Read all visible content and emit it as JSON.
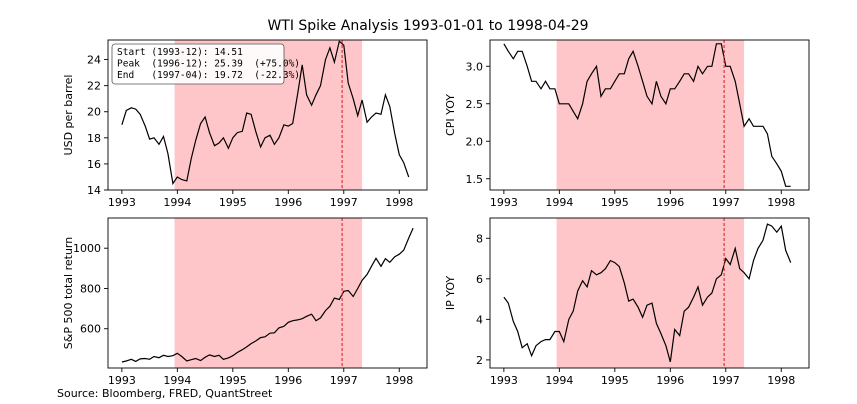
{
  "title": "WTI Spike Analysis 1993-01-01 to 1998-04-29",
  "source": "Source: Bloomberg, FRED, QuantStreet",
  "colors": {
    "line": "#000000",
    "shade": "#ffb3b8",
    "peak_line": "#d62728",
    "axis": "#000000"
  },
  "chart_data": [
    {
      "type": "line",
      "panel": "top-left",
      "ylabel": "USD per barrel",
      "xlim": [
        1992.75,
        1998.5
      ],
      "ylim": [
        14,
        25.5
      ],
      "xticks": [
        1993,
        1994,
        1995,
        1996,
        1997,
        1998
      ],
      "xtick_labels": [
        "1993",
        "1994",
        "1995",
        "1996",
        "1997",
        "1998"
      ],
      "yticks": [
        14,
        16,
        18,
        20,
        22,
        24
      ],
      "ytick_labels": [
        "14",
        "16",
        "18",
        "20",
        "22",
        "24"
      ],
      "shade": [
        1993.95,
        1997.33
      ],
      "peak": 1996.97,
      "annotation": {
        "lines": [
          "Start (1993-12): 14.51",
          "Peak  (1996-12): 25.39  (+75.0%)",
          "End   (1997-04): 19.72  (-22.3%)"
        ]
      },
      "series": [
        {
          "x": [
            1993.0,
            1993.08,
            1993.17,
            1993.25,
            1993.33,
            1993.42,
            1993.5,
            1993.58,
            1993.67,
            1993.75,
            1993.83,
            1993.92,
            1994.0,
            1994.08,
            1994.17,
            1994.25,
            1994.33,
            1994.42,
            1994.5,
            1994.58,
            1994.67,
            1994.75,
            1994.83,
            1994.92,
            1995.0,
            1995.08,
            1995.17,
            1995.25,
            1995.33,
            1995.42,
            1995.5,
            1995.58,
            1995.67,
            1995.75,
            1995.83,
            1995.92,
            1996.0,
            1996.08,
            1996.17,
            1996.25,
            1996.33,
            1996.42,
            1996.5,
            1996.58,
            1996.67,
            1996.75,
            1996.83,
            1996.92,
            1997.0,
            1997.08,
            1997.17,
            1997.25,
            1997.33,
            1997.42,
            1997.5,
            1997.58,
            1997.67,
            1997.75,
            1997.83,
            1997.92,
            1998.0,
            1998.08,
            1998.17,
            1998.25
          ],
          "y": [
            19.0,
            20.1,
            20.3,
            20.2,
            19.8,
            18.9,
            17.9,
            18.0,
            17.5,
            18.1,
            16.8,
            14.5,
            15.0,
            14.8,
            14.7,
            16.4,
            17.8,
            19.1,
            19.6,
            18.4,
            17.4,
            17.6,
            18.0,
            17.2,
            18.0,
            18.4,
            18.5,
            19.9,
            19.8,
            18.4,
            17.3,
            18.0,
            18.2,
            17.5,
            18.0,
            19.0,
            18.9,
            19.1,
            21.4,
            23.6,
            21.3,
            20.5,
            21.3,
            22.0,
            24.0,
            24.9,
            23.8,
            25.4,
            25.1,
            22.2,
            21.0,
            19.7,
            20.9,
            19.2,
            19.6,
            19.9,
            19.8,
            21.3,
            20.4,
            18.3,
            16.7,
            16.1,
            15.0,
            null
          ]
        }
      ]
    },
    {
      "type": "line",
      "panel": "top-right",
      "ylabel": "CPI YOY",
      "xlim": [
        1992.75,
        1998.5
      ],
      "ylim": [
        1.35,
        3.35
      ],
      "xticks": [
        1993,
        1994,
        1995,
        1996,
        1997,
        1998
      ],
      "xtick_labels": [
        "1993",
        "1994",
        "1995",
        "1996",
        "1997",
        "1998"
      ],
      "yticks": [
        1.5,
        2.0,
        2.5,
        3.0
      ],
      "ytick_labels": [
        "1.5",
        "2.0",
        "2.5",
        "3.0"
      ],
      "shade": [
        1993.95,
        1997.33
      ],
      "peak": 1996.97,
      "series": [
        {
          "x": [
            1993.0,
            1993.08,
            1993.17,
            1993.25,
            1993.33,
            1993.42,
            1993.5,
            1993.58,
            1993.67,
            1993.75,
            1993.83,
            1993.92,
            1994.0,
            1994.08,
            1994.17,
            1994.25,
            1994.33,
            1994.42,
            1994.5,
            1994.58,
            1994.67,
            1994.75,
            1994.83,
            1994.92,
            1995.0,
            1995.08,
            1995.17,
            1995.25,
            1995.33,
            1995.42,
            1995.5,
            1995.58,
            1995.67,
            1995.75,
            1995.83,
            1995.92,
            1996.0,
            1996.08,
            1996.17,
            1996.25,
            1996.33,
            1996.42,
            1996.5,
            1996.58,
            1996.67,
            1996.75,
            1996.83,
            1996.92,
            1997.0,
            1997.08,
            1997.17,
            1997.25,
            1997.33,
            1997.42,
            1997.5,
            1997.58,
            1997.67,
            1997.75,
            1997.83,
            1997.92,
            1998.0,
            1998.08,
            1998.17,
            1998.25
          ],
          "y": [
            3.3,
            3.2,
            3.1,
            3.2,
            3.2,
            3.0,
            2.8,
            2.8,
            2.7,
            2.8,
            2.7,
            2.7,
            2.5,
            2.5,
            2.5,
            2.4,
            2.3,
            2.5,
            2.8,
            2.9,
            3.0,
            2.6,
            2.7,
            2.7,
            2.8,
            2.9,
            2.9,
            3.1,
            3.2,
            3.0,
            2.8,
            2.6,
            2.5,
            2.8,
            2.6,
            2.5,
            2.7,
            2.7,
            2.8,
            2.9,
            2.9,
            2.8,
            3.0,
            2.9,
            3.0,
            3.0,
            3.3,
            3.3,
            3.0,
            3.0,
            2.8,
            2.5,
            2.2,
            2.3,
            2.2,
            2.2,
            2.2,
            2.1,
            1.8,
            1.7,
            1.6,
            1.4,
            1.4,
            null
          ]
        }
      ]
    },
    {
      "type": "line",
      "panel": "bottom-left",
      "ylabel": "S&P 500 total return",
      "xlim": [
        1992.75,
        1998.5
      ],
      "ylim": [
        405,
        1150
      ],
      "xticks": [
        1993,
        1994,
        1995,
        1996,
        1997,
        1998
      ],
      "xtick_labels": [
        "1993",
        "1994",
        "1995",
        "1996",
        "1997",
        "1998"
      ],
      "yticks": [
        600,
        800,
        1000
      ],
      "ytick_labels": [
        "600",
        "800",
        "1000"
      ],
      "shade": [
        1993.95,
        1997.33
      ],
      "peak": 1996.97,
      "series": [
        {
          "x": [
            1993.0,
            1993.08,
            1993.17,
            1993.25,
            1993.33,
            1993.42,
            1993.5,
            1993.58,
            1993.67,
            1993.75,
            1993.83,
            1993.92,
            1994.0,
            1994.08,
            1994.17,
            1994.25,
            1994.33,
            1994.42,
            1994.5,
            1994.58,
            1994.67,
            1994.75,
            1994.83,
            1994.92,
            1995.0,
            1995.08,
            1995.17,
            1995.25,
            1995.33,
            1995.42,
            1995.5,
            1995.58,
            1995.67,
            1995.75,
            1995.83,
            1995.92,
            1996.0,
            1996.08,
            1996.17,
            1996.25,
            1996.33,
            1996.42,
            1996.5,
            1996.58,
            1996.67,
            1996.75,
            1996.83,
            1996.92,
            1997.0,
            1997.08,
            1997.17,
            1997.25,
            1997.33,
            1997.42,
            1997.5,
            1997.58,
            1997.67,
            1997.75,
            1997.83,
            1997.92,
            1998.0,
            1998.08,
            1998.17,
            1998.25
          ],
          "y": [
            435,
            440,
            448,
            438,
            450,
            452,
            448,
            462,
            456,
            468,
            462,
            466,
            478,
            462,
            440,
            446,
            452,
            442,
            458,
            470,
            462,
            468,
            448,
            455,
            466,
            482,
            496,
            510,
            526,
            540,
            556,
            560,
            578,
            580,
            604,
            612,
            632,
            640,
            644,
            650,
            662,
            672,
            640,
            654,
            690,
            712,
            752,
            745,
            786,
            790,
            760,
            800,
            840,
            870,
            910,
            950,
            910,
            948,
            930,
            958,
            970,
            990,
            1050,
            1100
          ]
        }
      ]
    },
    {
      "type": "line",
      "panel": "bottom-right",
      "ylabel": "IP YOY",
      "xlim": [
        1992.75,
        1998.5
      ],
      "ylim": [
        1.6,
        9.0
      ],
      "xticks": [
        1993,
        1994,
        1995,
        1996,
        1997,
        1998
      ],
      "xtick_labels": [
        "1993",
        "1994",
        "1995",
        "1996",
        "1997",
        "1998"
      ],
      "yticks": [
        2,
        4,
        6,
        8
      ],
      "ytick_labels": [
        "2",
        "4",
        "6",
        "8"
      ],
      "shade": [
        1993.95,
        1997.33
      ],
      "peak": 1996.97,
      "series": [
        {
          "x": [
            1993.0,
            1993.08,
            1993.17,
            1993.25,
            1993.33,
            1993.42,
            1993.5,
            1993.58,
            1993.67,
            1993.75,
            1993.83,
            1993.92,
            1994.0,
            1994.08,
            1994.17,
            1994.25,
            1994.33,
            1994.42,
            1994.5,
            1994.58,
            1994.67,
            1994.75,
            1994.83,
            1994.92,
            1995.0,
            1995.08,
            1995.17,
            1995.25,
            1995.33,
            1995.42,
            1995.5,
            1995.58,
            1995.67,
            1995.75,
            1995.83,
            1995.92,
            1996.0,
            1996.08,
            1996.17,
            1996.25,
            1996.33,
            1996.42,
            1996.5,
            1996.58,
            1996.67,
            1996.75,
            1996.83,
            1996.92,
            1997.0,
            1997.08,
            1997.17,
            1997.25,
            1997.33,
            1997.42,
            1997.5,
            1997.58,
            1997.67,
            1997.75,
            1997.83,
            1997.92,
            1998.0,
            1998.08,
            1998.17,
            1998.25
          ],
          "y": [
            5.1,
            4.8,
            3.9,
            3.4,
            2.6,
            2.8,
            2.2,
            2.7,
            2.9,
            3.0,
            3.0,
            3.4,
            3.4,
            2.9,
            4.0,
            4.4,
            5.4,
            5.9,
            5.6,
            6.4,
            6.2,
            6.3,
            6.5,
            6.9,
            6.8,
            6.6,
            5.8,
            4.9,
            5.0,
            4.6,
            4.1,
            4.7,
            4.8,
            3.8,
            3.3,
            2.7,
            1.9,
            3.5,
            3.2,
            4.4,
            4.6,
            5.1,
            5.6,
            4.7,
            5.1,
            5.3,
            6.0,
            6.2,
            7.0,
            6.7,
            7.5,
            6.5,
            6.3,
            6.0,
            6.9,
            7.5,
            7.9,
            8.7,
            8.6,
            8.3,
            8.6,
            7.4,
            6.8,
            null
          ]
        }
      ]
    }
  ]
}
